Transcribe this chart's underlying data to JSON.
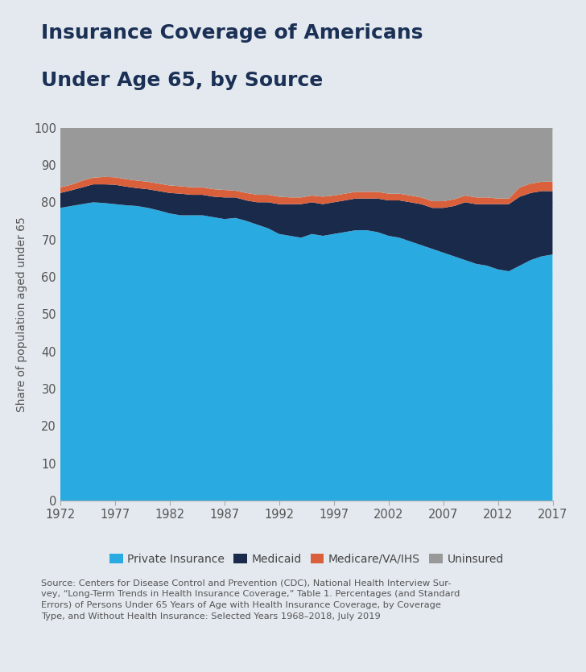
{
  "title_line1": "Insurance Coverage of Americans",
  "title_line2": "Under Age 65, by Source",
  "ylabel": "Share of population aged under 65",
  "background_color": "#e4e9ef",
  "plot_bg_color": "#ffffff",
  "title_color": "#1a3055",
  "source_text": "Source: Centers for Disease Control and Prevention (CDC), National Health Interview Sur-\nvey, “Long-Term Trends in Health Insurance Coverage,” Table 1. Percentages (and Standard\nErrors) of Persons Under 65 Years of Age with Health Insurance Coverage, by Coverage\nType, and Without Health Insurance: Selected Years 1968–2018, July 2019",
  "years": [
    1972,
    1973,
    1974,
    1975,
    1976,
    1977,
    1978,
    1979,
    1980,
    1981,
    1982,
    1983,
    1984,
    1985,
    1986,
    1987,
    1988,
    1989,
    1990,
    1991,
    1992,
    1993,
    1994,
    1995,
    1996,
    1997,
    1998,
    1999,
    2000,
    2001,
    2002,
    2003,
    2004,
    2005,
    2006,
    2007,
    2008,
    2009,
    2010,
    2011,
    2012,
    2013,
    2014,
    2015,
    2016,
    2017
  ],
  "private_insurance": [
    78.5,
    79.0,
    79.5,
    80.0,
    79.8,
    79.5,
    79.2,
    79.0,
    78.5,
    77.8,
    77.0,
    76.5,
    76.5,
    76.5,
    76.0,
    75.5,
    75.8,
    75.0,
    74.0,
    73.0,
    71.5,
    71.0,
    70.5,
    71.5,
    71.0,
    71.5,
    72.0,
    72.5,
    72.5,
    72.0,
    71.0,
    70.5,
    69.5,
    68.5,
    67.5,
    66.5,
    65.5,
    64.5,
    63.5,
    63.0,
    62.0,
    61.5,
    63.0,
    64.5,
    65.5,
    66.0
  ],
  "medicaid": [
    4.0,
    4.2,
    4.5,
    4.8,
    5.0,
    5.2,
    5.0,
    4.8,
    5.0,
    5.2,
    5.5,
    5.8,
    5.5,
    5.5,
    5.5,
    5.8,
    5.5,
    5.5,
    6.0,
    7.0,
    8.0,
    8.5,
    9.0,
    8.5,
    8.5,
    8.5,
    8.5,
    8.5,
    8.5,
    9.0,
    9.5,
    10.0,
    10.5,
    11.0,
    11.0,
    12.0,
    13.5,
    15.5,
    16.0,
    16.5,
    17.5,
    18.0,
    18.5,
    18.0,
    17.5,
    17.0
  ],
  "medicare_va_ihs": [
    1.5,
    1.5,
    1.8,
    1.8,
    2.0,
    2.0,
    2.0,
    2.0,
    2.0,
    2.0,
    2.0,
    2.0,
    2.0,
    2.0,
    2.0,
    2.0,
    1.8,
    2.0,
    2.0,
    2.0,
    2.0,
    1.8,
    1.8,
    1.8,
    2.0,
    1.8,
    1.8,
    1.8,
    1.8,
    1.8,
    1.8,
    1.8,
    1.8,
    1.8,
    1.8,
    1.8,
    1.8,
    1.8,
    1.8,
    1.8,
    1.5,
    1.5,
    2.5,
    2.5,
    2.5,
    2.5
  ],
  "uninsured": [
    16.0,
    15.3,
    14.2,
    13.4,
    13.2,
    13.3,
    13.8,
    14.2,
    14.5,
    15.0,
    15.5,
    15.7,
    16.0,
    16.0,
    16.5,
    16.7,
    16.9,
    17.5,
    18.0,
    18.0,
    18.5,
    18.7,
    18.7,
    18.2,
    18.5,
    18.2,
    17.7,
    17.2,
    17.2,
    17.2,
    17.7,
    17.7,
    18.2,
    18.7,
    19.7,
    19.7,
    19.2,
    18.2,
    18.7,
    18.7,
    19.0,
    19.0,
    16.0,
    15.0,
    14.5,
    14.5
  ],
  "colors": {
    "private_insurance": "#29abe2",
    "medicaid": "#1a2a4a",
    "medicare_va_ihs": "#d9603b",
    "uninsured": "#999999"
  },
  "legend_labels": [
    "Private Insurance",
    "Medicaid",
    "Medicare/VA/IHS",
    "Uninsured"
  ],
  "xtick_labels": [
    "1972",
    "1977",
    "1982",
    "1987",
    "1992",
    "1997",
    "2002",
    "2007",
    "2012",
    "2017"
  ],
  "xtick_years": [
    1972,
    1977,
    1982,
    1987,
    1992,
    1997,
    2002,
    2007,
    2012,
    2017
  ],
  "ylim": [
    0,
    100
  ],
  "ytick_step": 10
}
